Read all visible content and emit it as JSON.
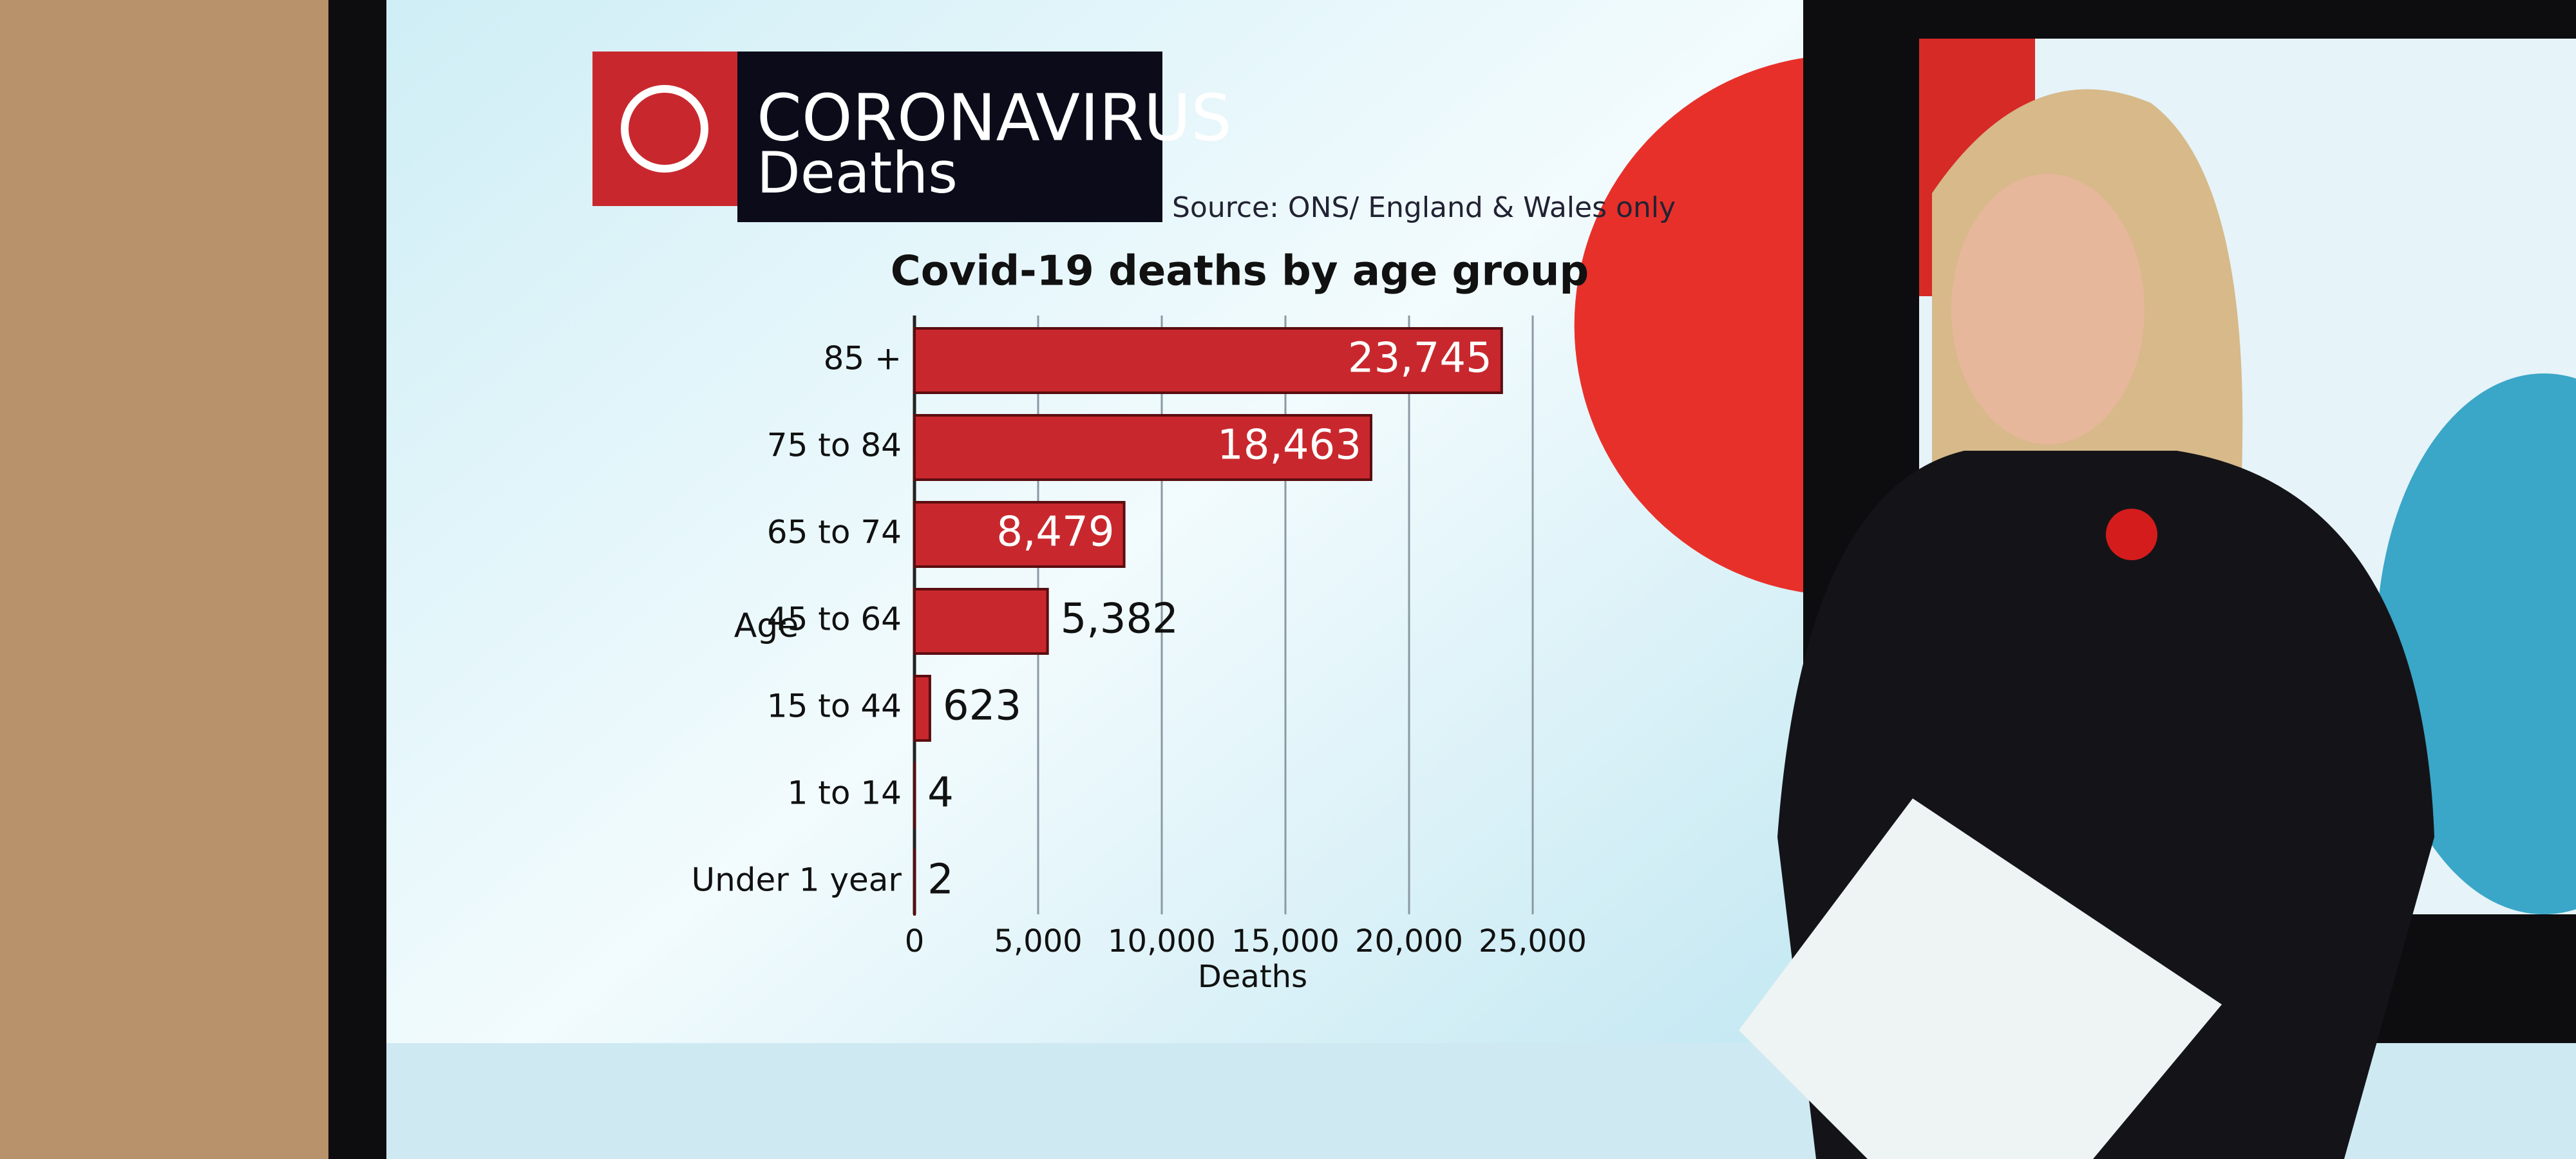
{
  "header": {
    "title": "CORONAVIRUS",
    "subtitle": "Deaths",
    "source": "Source: ONS/ England & Wales only"
  },
  "chart_data": {
    "type": "hbar",
    "title": "Covid-19 deaths by age group",
    "categories": [
      "85 +",
      "75 to 84",
      "65 to 74",
      "45 to 64",
      "15 to 44",
      "1 to 14",
      "Under 1 year"
    ],
    "values": [
      23745,
      18463,
      8479,
      5382,
      623,
      4,
      2
    ],
    "value_labels": [
      "23,745",
      "18,463",
      "8,479",
      "5,382",
      "623",
      "4",
      "2"
    ],
    "color": "#c8282d",
    "xlim": [
      0,
      25000
    ],
    "xticks": [
      0,
      {
        "value": 5000,
        "label": "5,000"
      },
      {
        "value": 10000,
        "label": "10,000"
      },
      {
        "value": 15000,
        "label": "15,000"
      },
      {
        "value": 20000,
        "label": "20,000"
      },
      {
        "value": 25000,
        "label": "25,000"
      }
    ],
    "xlabel": "Deaths",
    "ylabel": "Age",
    "grid": true
  }
}
